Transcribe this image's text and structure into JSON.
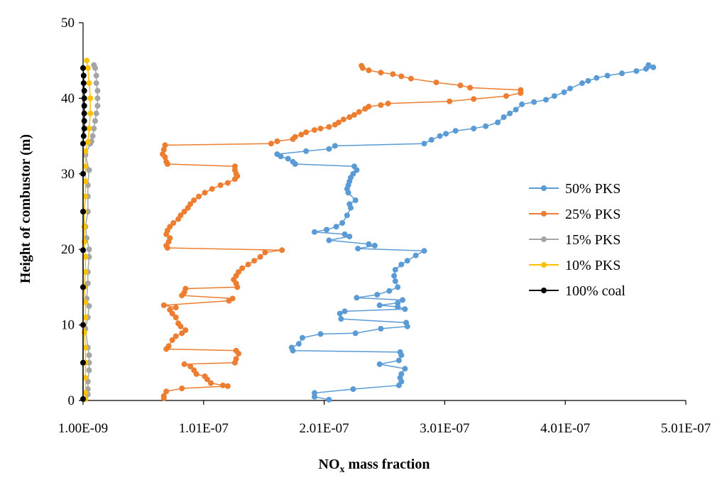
{
  "chart_data": {
    "type": "scatter",
    "title": "",
    "xlabel_main": "NO",
    "xlabel_sub": "x",
    "xlabel_tail": " mass fraction",
    "ylabel": "Height of combustor (m)",
    "xlim": [
      1e-09,
      5.01e-07
    ],
    "ylim": [
      0,
      50
    ],
    "x_ticks": [
      1e-09,
      1.01e-07,
      2.01e-07,
      3.01e-07,
      4.01e-07,
      5.01e-07
    ],
    "x_tick_labels": [
      "1.00E-09",
      "1.01E-07",
      "2.01E-07",
      "3.01E-07",
      "4.01E-07",
      "5.01E-07"
    ],
    "y_ticks": [
      0,
      10,
      20,
      30,
      40,
      50
    ],
    "y_tick_labels": [
      "0",
      "10",
      "20",
      "30",
      "40",
      "50"
    ],
    "legend_position": "right",
    "series": [
      {
        "name": "50% PKS",
        "color": "#5b9bd5",
        "points": [
          [
            2.05e-07,
            0.1
          ],
          [
            1.93e-07,
            0.5
          ],
          [
            1.93e-07,
            1.0
          ],
          [
            2.25e-07,
            1.5
          ],
          [
            2.63e-07,
            2.0
          ],
          [
            2.65e-07,
            2.5
          ],
          [
            2.64e-07,
            3.0
          ],
          [
            2.65e-07,
            3.5
          ],
          [
            2.68e-07,
            4.2
          ],
          [
            2.47e-07,
            4.8
          ],
          [
            2.63e-07,
            5.3
          ],
          [
            2.65e-07,
            6.0
          ],
          [
            2.64e-07,
            6.4
          ],
          [
            1.75e-07,
            6.6
          ],
          [
            1.74e-07,
            7.0
          ],
          [
            1.8e-07,
            7.5
          ],
          [
            1.83e-07,
            8.3
          ],
          [
            1.98e-07,
            8.8
          ],
          [
            2.27e-07,
            8.9
          ],
          [
            2.48e-07,
            9.5
          ],
          [
            2.7e-07,
            9.8
          ],
          [
            2.69e-07,
            10.3
          ],
          [
            2.15e-07,
            10.8
          ],
          [
            2.14e-07,
            11.5
          ],
          [
            2.18e-07,
            11.8
          ],
          [
            2.68e-07,
            12.1
          ],
          [
            2.62e-07,
            12.4
          ],
          [
            2.47e-07,
            12.6
          ],
          [
            2.62e-07,
            12.9
          ],
          [
            2.66e-07,
            13.3
          ],
          [
            2.28e-07,
            13.6
          ],
          [
            2.45e-07,
            14.0
          ],
          [
            2.55e-07,
            14.5
          ],
          [
            2.62e-07,
            15.0
          ],
          [
            2.6e-07,
            15.8
          ],
          [
            2.59e-07,
            16.5
          ],
          [
            2.6e-07,
            17.3
          ],
          [
            2.65e-07,
            18.0
          ],
          [
            2.7e-07,
            18.5
          ],
          [
            2.77e-07,
            19.2
          ],
          [
            2.84e-07,
            19.8
          ],
          [
            2.29e-07,
            20.1
          ],
          [
            2.43e-07,
            20.5
          ],
          [
            2.38e-07,
            20.7
          ],
          [
            2.05e-07,
            21.2
          ],
          [
            2.22e-07,
            21.7
          ],
          [
            2.18e-07,
            22.0
          ],
          [
            1.93e-07,
            22.3
          ],
          [
            2.03e-07,
            22.6
          ],
          [
            2.11e-07,
            23.0
          ],
          [
            2.16e-07,
            23.5
          ],
          [
            2.2e-07,
            24.5
          ],
          [
            2.23e-07,
            25.5
          ],
          [
            2.22e-07,
            26.0
          ],
          [
            2.27e-07,
            26.5
          ],
          [
            2.21e-07,
            27.5
          ],
          [
            2.2e-07,
            28.0
          ],
          [
            2.21e-07,
            28.5
          ],
          [
            2.22e-07,
            29.0
          ],
          [
            2.23e-07,
            29.5
          ],
          [
            2.25e-07,
            30.0
          ],
          [
            2.28e-07,
            30.5
          ],
          [
            2.26e-07,
            31.0
          ],
          [
            1.77e-07,
            31.3
          ],
          [
            1.75e-07,
            31.6
          ],
          [
            1.71e-07,
            32.0
          ],
          [
            1.65e-07,
            32.3
          ],
          [
            1.62e-07,
            32.6
          ],
          [
            1.86e-07,
            33.0
          ],
          [
            2.05e-07,
            33.3
          ],
          [
            2.1e-07,
            33.7
          ],
          [
            2.84e-07,
            34.0
          ],
          [
            2.9e-07,
            34.5
          ],
          [
            2.97e-07,
            35.0
          ],
          [
            3.02e-07,
            35.3
          ],
          [
            3.1e-07,
            35.7
          ],
          [
            3.25e-07,
            36.0
          ],
          [
            3.35e-07,
            36.3
          ],
          [
            3.45e-07,
            36.8
          ],
          [
            3.5e-07,
            37.5
          ],
          [
            3.55e-07,
            38.0
          ],
          [
            3.6e-07,
            38.5
          ],
          [
            3.65e-07,
            39.2
          ],
          [
            3.75e-07,
            39.5
          ],
          [
            3.85e-07,
            39.8
          ],
          [
            3.92e-07,
            40.3
          ],
          [
            4e-07,
            40.8
          ],
          [
            4.05e-07,
            41.3
          ],
          [
            4.15e-07,
            42.0
          ],
          [
            4.2e-07,
            42.3
          ],
          [
            4.27e-07,
            42.7
          ],
          [
            4.36e-07,
            43.0
          ],
          [
            4.48e-07,
            43.3
          ],
          [
            4.6e-07,
            43.6
          ],
          [
            4.68e-07,
            43.9
          ],
          [
            4.74e-07,
            44.1
          ],
          [
            4.7e-07,
            44.4
          ]
        ]
      },
      {
        "name": "25% PKS",
        "color": "#ed7d31",
        "points": [
          [
            6.8e-08,
            0.3
          ],
          [
            6.8e-08,
            0.6
          ],
          [
            7e-08,
            1.2
          ],
          [
            8.3e-08,
            1.6
          ],
          [
            1.21e-07,
            1.9
          ],
          [
            1.17e-07,
            2.0
          ],
          [
            1.07e-07,
            2.3
          ],
          [
            1.04e-07,
            2.8
          ],
          [
            1.02e-07,
            3.2
          ],
          [
            9.5e-08,
            3.5
          ],
          [
            9.3e-08,
            4.0
          ],
          [
            9e-08,
            4.5
          ],
          [
            8.5e-08,
            4.8
          ],
          [
            1.27e-07,
            5.0
          ],
          [
            1.28e-07,
            5.5
          ],
          [
            1.3e-07,
            6.2
          ],
          [
            1.28e-07,
            6.6
          ],
          [
            7e-08,
            6.8
          ],
          [
            7.2e-08,
            7.2
          ],
          [
            7.5e-08,
            8.0
          ],
          [
            7.8e-08,
            8.5
          ],
          [
            8.3e-08,
            8.9
          ],
          [
            8.6e-08,
            9.3
          ],
          [
            8.2e-08,
            9.8
          ],
          [
            8e-08,
            10.2
          ],
          [
            7.8e-08,
            11.0
          ],
          [
            7.5e-08,
            11.5
          ],
          [
            7.3e-08,
            12.0
          ],
          [
            7.8e-08,
            12.3
          ],
          [
            6.8e-08,
            12.6
          ],
          [
            1.22e-07,
            13.2
          ],
          [
            1.25e-07,
            13.5
          ],
          [
            8.3e-08,
            13.9
          ],
          [
            8.5e-08,
            14.3
          ],
          [
            8.6e-08,
            14.8
          ],
          [
            1.29e-07,
            15.0
          ],
          [
            1.28e-07,
            15.5
          ],
          [
            1.26e-07,
            16.0
          ],
          [
            1.28e-07,
            16.5
          ],
          [
            1.3e-07,
            17.0
          ],
          [
            1.33e-07,
            17.5
          ],
          [
            1.38e-07,
            18.0
          ],
          [
            1.43e-07,
            18.5
          ],
          [
            1.48e-07,
            19.0
          ],
          [
            1.52e-07,
            19.6
          ],
          [
            1.66e-07,
            19.9
          ],
          [
            7.1e-08,
            20.2
          ],
          [
            7e-08,
            20.5
          ],
          [
            7.2e-08,
            21.0
          ],
          [
            7.3e-08,
            21.5
          ],
          [
            7e-08,
            22.0
          ],
          [
            7.1e-08,
            22.5
          ],
          [
            7.3e-08,
            23.0
          ],
          [
            7.6e-08,
            23.5
          ],
          [
            8e-08,
            24.0
          ],
          [
            8.2e-08,
            24.5
          ],
          [
            8.5e-08,
            25.0
          ],
          [
            8.8e-08,
            25.5
          ],
          [
            9e-08,
            26.0
          ],
          [
            9.3e-08,
            26.5
          ],
          [
            9.7e-08,
            27.0
          ],
          [
            1.02e-07,
            27.5
          ],
          [
            1.08e-07,
            28.0
          ],
          [
            1.15e-07,
            28.5
          ],
          [
            1.21e-07,
            28.8
          ],
          [
            1.27e-07,
            29.3
          ],
          [
            1.29e-07,
            29.7
          ],
          [
            1.28e-07,
            30.0
          ],
          [
            1.27e-07,
            30.5
          ],
          [
            1.27e-07,
            31.0
          ],
          [
            7.1e-08,
            31.3
          ],
          [
            7e-08,
            31.6
          ],
          [
            6.9e-08,
            32.2
          ],
          [
            6.7e-08,
            32.6
          ],
          [
            6.8e-08,
            33.2
          ],
          [
            6.9e-08,
            33.8
          ],
          [
            1.57e-07,
            34.0
          ],
          [
            1.62e-07,
            34.3
          ],
          [
            1.75e-07,
            34.6
          ],
          [
            1.77e-07,
            34.9
          ],
          [
            1.82e-07,
            35.2
          ],
          [
            1.86e-07,
            35.5
          ],
          [
            1.93e-07,
            35.8
          ],
          [
            1.98e-07,
            36.0
          ],
          [
            2.05e-07,
            36.2
          ],
          [
            2.1e-07,
            36.5
          ],
          [
            2.13e-07,
            36.8
          ],
          [
            2.17e-07,
            37.2
          ],
          [
            2.22e-07,
            37.5
          ],
          [
            2.26e-07,
            37.8
          ],
          [
            2.3e-07,
            38.2
          ],
          [
            2.35e-07,
            38.6
          ],
          [
            2.38e-07,
            38.9
          ],
          [
            2.48e-07,
            39.1
          ],
          [
            2.54e-07,
            39.3
          ],
          [
            3.05e-07,
            39.6
          ],
          [
            3.25e-07,
            39.9
          ],
          [
            3.52e-07,
            40.3
          ],
          [
            3.64e-07,
            40.7
          ],
          [
            3.64e-07,
            41.1
          ],
          [
            3.22e-07,
            41.4
          ],
          [
            3.14e-07,
            41.7
          ],
          [
            2.94e-07,
            42.1
          ],
          [
            2.73e-07,
            42.6
          ],
          [
            2.65e-07,
            42.9
          ],
          [
            2.58e-07,
            43.2
          ],
          [
            2.48e-07,
            43.4
          ],
          [
            2.38e-07,
            43.7
          ],
          [
            2.33e-07,
            44.0
          ],
          [
            2.32e-07,
            44.3
          ]
        ]
      },
      {
        "name": "15% PKS",
        "color": "#a5a5a5",
        "points": [
          [
            3e-09,
            0.2
          ],
          [
            5e-09,
            0.8
          ],
          [
            5e-09,
            1.5
          ],
          [
            5e-09,
            2.5
          ],
          [
            6e-09,
            4.0
          ],
          [
            6e-09,
            5.0
          ],
          [
            6e-09,
            6.0
          ],
          [
            5e-09,
            7.0
          ],
          [
            3e-09,
            9.5
          ],
          [
            5e-09,
            11.0
          ],
          [
            6e-09,
            12.5
          ],
          [
            4e-09,
            13.5
          ],
          [
            5e-09,
            15.5
          ],
          [
            5e-09,
            17.0
          ],
          [
            6e-09,
            19.0
          ],
          [
            6e-09,
            20.0
          ],
          [
            4e-09,
            21.5
          ],
          [
            3e-09,
            23.0
          ],
          [
            5e-09,
            25.0
          ],
          [
            5e-09,
            27.0
          ],
          [
            5e-09,
            28.5
          ],
          [
            6e-09,
            30.5
          ],
          [
            3e-09,
            32.5
          ],
          [
            7e-09,
            34.0
          ],
          [
            8e-09,
            34.3
          ],
          [
            9e-09,
            35.0
          ],
          [
            1e-08,
            36.0
          ],
          [
            1.1e-08,
            37.0
          ],
          [
            1.2e-08,
            38.0
          ],
          [
            1.3e-08,
            39.0
          ],
          [
            1.3e-08,
            40.0
          ],
          [
            1.3e-08,
            41.0
          ],
          [
            1.2e-08,
            42.0
          ],
          [
            1.2e-08,
            43.0
          ],
          [
            1.1e-08,
            44.0
          ],
          [
            1e-08,
            44.4
          ]
        ]
      },
      {
        "name": "10% PKS",
        "color": "#ffc000",
        "points": [
          [
            3e-09,
            0.2
          ],
          [
            3e-09,
            1.0
          ],
          [
            3e-09,
            3.0
          ],
          [
            3e-09,
            5.0
          ],
          [
            3e-09,
            7.0
          ],
          [
            2e-09,
            9.0
          ],
          [
            3e-09,
            11.0
          ],
          [
            3e-09,
            13.0
          ],
          [
            2e-09,
            15.0
          ],
          [
            3e-09,
            17.0
          ],
          [
            3e-09,
            19.0
          ],
          [
            2e-09,
            21.0
          ],
          [
            2e-09,
            23.0
          ],
          [
            2e-09,
            25.0
          ],
          [
            3e-09,
            27.0
          ],
          [
            3e-09,
            29.0
          ],
          [
            3e-09,
            31.0
          ],
          [
            3e-09,
            33.0
          ],
          [
            5e-09,
            34.2
          ],
          [
            6e-09,
            36.0
          ],
          [
            7e-09,
            38.0
          ],
          [
            7e-09,
            40.0
          ],
          [
            6e-09,
            42.0
          ],
          [
            5e-09,
            44.0
          ],
          [
            4e-09,
            45.0
          ]
        ]
      },
      {
        "name": "100% coal",
        "color": "#000000",
        "points": [
          [
            1e-09,
            0.2
          ],
          [
            1e-09,
            5.0
          ],
          [
            1e-09,
            10.0
          ],
          [
            1e-09,
            15.0
          ],
          [
            1e-09,
            19.9
          ],
          [
            1e-09,
            25.0
          ],
          [
            1e-09,
            30.0
          ],
          [
            1e-09,
            34.0
          ],
          [
            1.5e-09,
            35.0
          ],
          [
            2e-09,
            36.0
          ],
          [
            2e-09,
            37.0
          ],
          [
            2e-09,
            38.0
          ],
          [
            2e-09,
            39.0
          ],
          [
            2e-09,
            40.0
          ],
          [
            2e-09,
            41.0
          ],
          [
            1.5e-09,
            42.0
          ],
          [
            1.5e-09,
            43.0
          ],
          [
            1e-09,
            44.0
          ]
        ]
      }
    ]
  }
}
